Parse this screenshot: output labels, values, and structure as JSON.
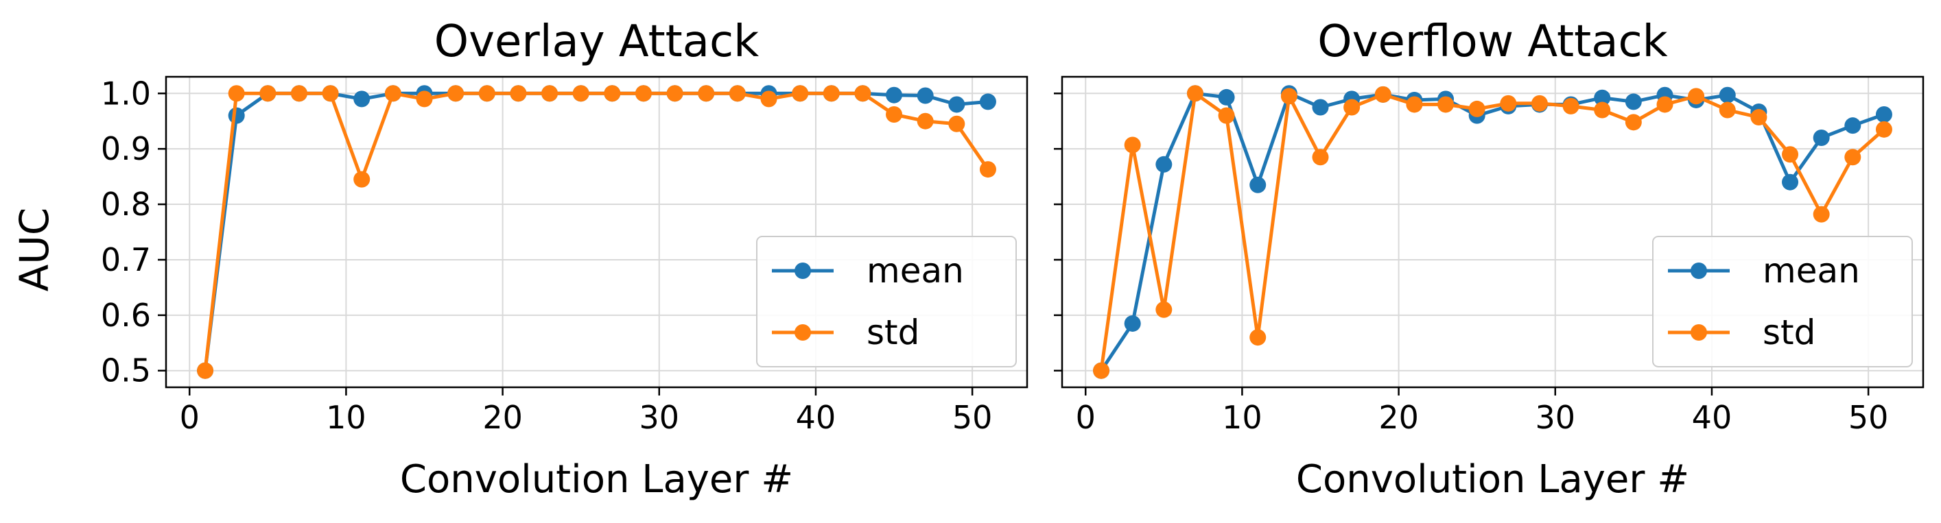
{
  "figure": {
    "ylabel": "AUC"
  },
  "style": {
    "mean_color": "#1f77b4",
    "std_color": "#ff7f0e",
    "grid_color": "#d9d9d9",
    "axes_color": "#000000"
  },
  "chart_data": [
    {
      "type": "line",
      "title": "Overlay Attack",
      "xlabel": "Convolution Layer #",
      "ylabel": "AUC",
      "xlim": [
        -1.5,
        53.5
      ],
      "ylim": [
        0.47,
        1.03
      ],
      "xticks": [
        0,
        10,
        20,
        30,
        40,
        50
      ],
      "yticks": [
        0.5,
        0.6,
        0.7,
        0.8,
        0.9,
        1.0
      ],
      "ytick_labels": [
        "0.5",
        "0.6",
        "0.7",
        "0.8",
        "0.9",
        "1.0"
      ],
      "grid": true,
      "legend_position": "lower-right",
      "x": [
        1,
        3,
        5,
        7,
        9,
        11,
        13,
        15,
        17,
        19,
        21,
        23,
        25,
        27,
        29,
        31,
        33,
        35,
        37,
        39,
        41,
        43,
        45,
        47,
        49,
        51
      ],
      "series": [
        {
          "name": "mean",
          "color": "#1f77b4",
          "values": [
            0.5,
            0.96,
            1.0,
            1.0,
            1.0,
            0.99,
            1.0,
            1.0,
            1.0,
            1.0,
            1.0,
            1.0,
            1.0,
            1.0,
            1.0,
            1.0,
            1.0,
            1.0,
            1.0,
            1.0,
            1.0,
            1.0,
            0.997,
            0.996,
            0.98,
            0.985
          ]
        },
        {
          "name": "std",
          "color": "#ff7f0e",
          "values": [
            0.5,
            1.0,
            1.0,
            1.0,
            1.0,
            0.845,
            1.0,
            0.99,
            1.0,
            1.0,
            1.0,
            1.0,
            1.0,
            1.0,
            1.0,
            1.0,
            1.0,
            1.0,
            0.99,
            1.0,
            1.0,
            1.0,
            0.962,
            0.95,
            0.945,
            0.863
          ]
        }
      ]
    },
    {
      "type": "line",
      "title": "Overflow Attack",
      "xlabel": "Convolution Layer #",
      "ylabel": "",
      "xlim": [
        -1.5,
        53.5
      ],
      "ylim": [
        0.47,
        1.03
      ],
      "xticks": [
        0,
        10,
        20,
        30,
        40,
        50
      ],
      "yticks": [
        0.5,
        0.6,
        0.7,
        0.8,
        0.9,
        1.0
      ],
      "ytick_labels": [],
      "grid": true,
      "legend_position": "lower-right",
      "x": [
        1,
        3,
        5,
        7,
        9,
        11,
        13,
        15,
        17,
        19,
        21,
        23,
        25,
        27,
        29,
        31,
        33,
        35,
        37,
        39,
        41,
        43,
        45,
        47,
        49,
        51
      ],
      "series": [
        {
          "name": "mean",
          "color": "#1f77b4",
          "values": [
            0.5,
            0.585,
            0.872,
            1.0,
            0.993,
            0.835,
            1.0,
            0.975,
            0.99,
            0.998,
            0.988,
            0.99,
            0.96,
            0.977,
            0.98,
            0.98,
            0.992,
            0.985,
            0.997,
            0.988,
            0.997,
            0.967,
            0.84,
            0.92,
            0.942,
            0.962
          ]
        },
        {
          "name": "std",
          "color": "#ff7f0e",
          "values": [
            0.5,
            0.907,
            0.61,
            1.0,
            0.96,
            0.56,
            0.995,
            0.885,
            0.975,
            0.998,
            0.98,
            0.98,
            0.972,
            0.982,
            0.982,
            0.977,
            0.97,
            0.948,
            0.98,
            0.995,
            0.97,
            0.957,
            0.89,
            0.782,
            0.885,
            0.935
          ]
        }
      ]
    }
  ]
}
